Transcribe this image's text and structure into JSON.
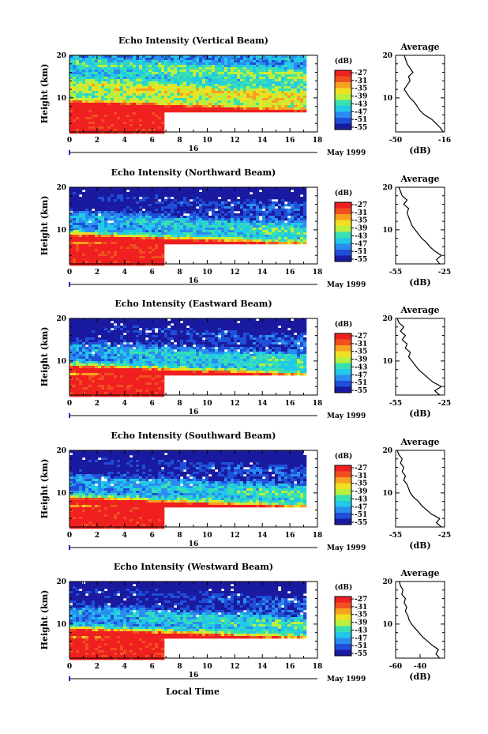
{
  "figure": {
    "x_axis_label": "Local Time",
    "y_axis_label": "Height (km)",
    "colorbar_unit": "(dB)",
    "colorbar_ticks": [
      "-27",
      "-31",
      "-35",
      "-39",
      "-43",
      "-47",
      "-51",
      "-55"
    ],
    "colorbar_colors": [
      "#1a1aa0",
      "#1f4fd8",
      "#2a8cf0",
      "#22c8e8",
      "#38e0b0",
      "#b8f040",
      "#f0e020",
      "#f8a020",
      "#f05020",
      "#f02020"
    ],
    "date_label": "May 1999",
    "day_label": "16",
    "average_title": "Average",
    "average_xlabel": "(dB)"
  },
  "chart_data": [
    {
      "type": "heatmap",
      "title": "Echo Intensity (Vertical Beam)",
      "xlim": [
        0,
        18
      ],
      "ylim": [
        2,
        20
      ],
      "x_ticks": [
        "0",
        "2",
        "4",
        "6",
        "8",
        "10",
        "12",
        "14",
        "16",
        "18"
      ],
      "y_ticks": [
        "20",
        "10"
      ],
      "profile": {
        "xlim": [
          -50,
          -16
        ],
        "x_ticks": [
          "-50",
          "-16"
        ],
        "y_ticks": [
          "20",
          "10"
        ],
        "heights": [
          2,
          3,
          4,
          5,
          6,
          7,
          8,
          9,
          10,
          11,
          12,
          13,
          14,
          15,
          16,
          17,
          18,
          19,
          20
        ],
        "values": [
          -17,
          -19,
          -22,
          -25,
          -30,
          -33,
          -35,
          -37,
          -40,
          -42,
          -44,
          -42,
          -40,
          -41,
          -38,
          -40,
          -42,
          -43,
          -44
        ]
      }
    },
    {
      "type": "heatmap",
      "title": "Echo Intensity (Northward Beam)",
      "xlim": [
        0,
        18
      ],
      "ylim": [
        2,
        20
      ],
      "x_ticks": [
        "0",
        "2",
        "4",
        "6",
        "8",
        "10",
        "12",
        "14",
        "16",
        "18"
      ],
      "y_ticks": [
        "20",
        "10"
      ],
      "profile": {
        "xlim": [
          -55,
          -25
        ],
        "x_ticks": [
          "-55",
          "-25"
        ],
        "y_ticks": [
          "20",
          "10"
        ],
        "heights": [
          2,
          3,
          4,
          5,
          6,
          7,
          8,
          9,
          10,
          11,
          12,
          13,
          14,
          15,
          16,
          17,
          18,
          19,
          20
        ],
        "values": [
          -28,
          -30,
          -27,
          -31,
          -34,
          -36,
          -39,
          -41,
          -43,
          -45,
          -46,
          -47,
          -48,
          -47,
          -50,
          -48,
          -51,
          -52,
          -53
        ]
      }
    },
    {
      "type": "heatmap",
      "title": "Echo Intensity (Eastward Beam)",
      "xlim": [
        0,
        18
      ],
      "ylim": [
        2,
        20
      ],
      "x_ticks": [
        "0",
        "2",
        "4",
        "6",
        "8",
        "10",
        "12",
        "14",
        "16",
        "18"
      ],
      "y_ticks": [
        "20",
        "10"
      ],
      "profile": {
        "xlim": [
          -55,
          -25
        ],
        "x_ticks": [
          "-55",
          "-25"
        ],
        "y_ticks": [
          "20",
          "10"
        ],
        "heights": [
          2,
          3,
          4,
          5,
          6,
          7,
          8,
          9,
          10,
          11,
          12,
          13,
          14,
          15,
          16,
          17,
          18,
          19,
          20
        ],
        "values": [
          -28,
          -31,
          -27,
          -32,
          -35,
          -38,
          -41,
          -43,
          -45,
          -47,
          -46,
          -49,
          -48,
          -51,
          -49,
          -52,
          -50,
          -53,
          -54
        ]
      }
    },
    {
      "type": "heatmap",
      "title": "Echo Intensity (Southward Beam)",
      "xlim": [
        0,
        18
      ],
      "ylim": [
        2,
        20
      ],
      "x_ticks": [
        "0",
        "2",
        "4",
        "6",
        "8",
        "10",
        "12",
        "14",
        "16",
        "18"
      ],
      "y_ticks": [
        "20",
        "10"
      ],
      "profile": {
        "xlim": [
          -55,
          -25
        ],
        "x_ticks": [
          "-55",
          "-25"
        ],
        "y_ticks": [
          "20",
          "10"
        ],
        "heights": [
          2,
          3,
          4,
          5,
          6,
          7,
          8,
          9,
          10,
          11,
          12,
          13,
          14,
          15,
          16,
          17,
          18,
          19,
          20
        ],
        "values": [
          -27,
          -30,
          -28,
          -33,
          -36,
          -39,
          -41,
          -44,
          -46,
          -47,
          -48,
          -50,
          -49,
          -51,
          -50,
          -52,
          -51,
          -53,
          -54
        ]
      }
    },
    {
      "type": "heatmap",
      "title": "Echo Intensity (Westward Beam)",
      "xlim": [
        0,
        18
      ],
      "ylim": [
        2,
        20
      ],
      "x_ticks": [
        "0",
        "2",
        "4",
        "6",
        "8",
        "10",
        "12",
        "14",
        "16",
        "18"
      ],
      "y_ticks": [
        "20",
        "10"
      ],
      "profile": {
        "xlim": [
          -60,
          -20
        ],
        "x_ticks": [
          "-60",
          "-40"
        ],
        "y_ticks": [
          "20",
          "10"
        ],
        "heights": [
          2,
          3,
          4,
          5,
          6,
          7,
          8,
          9,
          10,
          11,
          12,
          13,
          14,
          15,
          16,
          17,
          18,
          19,
          20
        ],
        "values": [
          -24,
          -27,
          -25,
          -30,
          -34,
          -38,
          -41,
          -44,
          -47,
          -49,
          -50,
          -52,
          -51,
          -53,
          -52,
          -55,
          -54,
          -56,
          -57
        ]
      }
    }
  ]
}
